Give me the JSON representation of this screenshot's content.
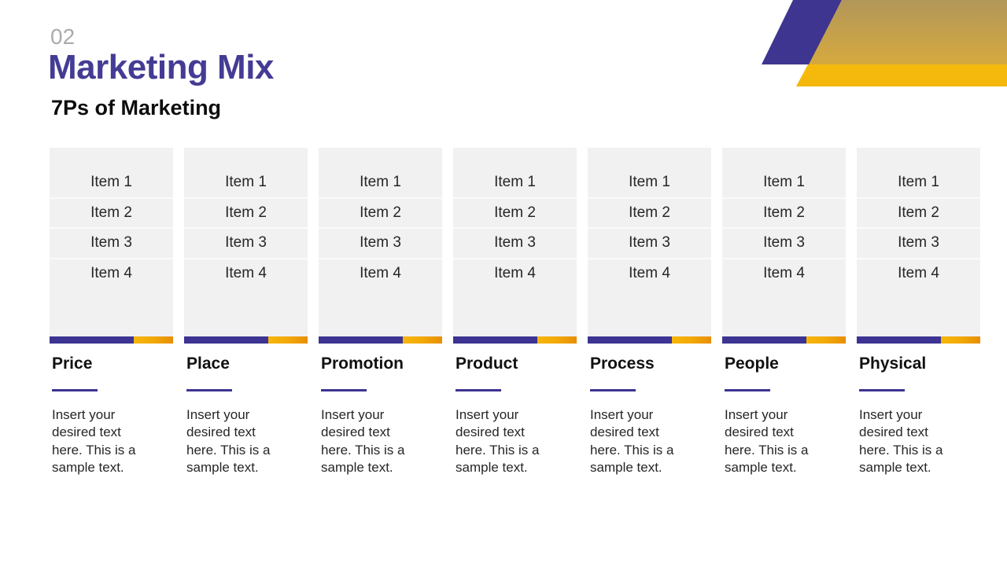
{
  "slide": {
    "section_number": "02",
    "title": "Marketing Mix",
    "subtitle": "7Ps of Marketing"
  },
  "colors": {
    "accent_purple": "#3c3392",
    "title_purple": "#443c94",
    "accent_gold": "#f4b60b",
    "accent_orange": "#e78e06",
    "card_gray": "#f1f1f1",
    "muted_number_gray": "#ababab"
  },
  "body_text": "Insert your\ndesired text\nhere. This is a\nsample text.",
  "columns": [
    {
      "heading": "Price",
      "items": [
        "Item 1",
        "Item 2",
        "Item 3",
        "Item 4"
      ],
      "body": "Insert your\ndesired text\nhere. This is a\nsample text."
    },
    {
      "heading": "Place",
      "items": [
        "Item 1",
        "Item 2",
        "Item 3",
        "Item 4"
      ],
      "body": "Insert your\ndesired text\nhere. This is a\nsample text."
    },
    {
      "heading": "Promotion",
      "items": [
        "Item 1",
        "Item 2",
        "Item 3",
        "Item 4"
      ],
      "body": "Insert your\ndesired text\nhere. This is a\nsample text."
    },
    {
      "heading": "Product",
      "items": [
        "Item 1",
        "Item 2",
        "Item 3",
        "Item 4"
      ],
      "body": "Insert your\ndesired text\nhere. This is a\nsample text."
    },
    {
      "heading": "Process",
      "items": [
        "Item 1",
        "Item 2",
        "Item 3",
        "Item 4"
      ],
      "body": "Insert your\ndesired text\nhere. This is a\nsample text."
    },
    {
      "heading": "People",
      "items": [
        "Item 1",
        "Item 2",
        "Item 3",
        "Item 4"
      ],
      "body": "Insert your\ndesired text\nhere. This is a\nsample text."
    },
    {
      "heading": "Physical",
      "items": [
        "Item 1",
        "Item 2",
        "Item 3",
        "Item 4"
      ],
      "body": "Insert your\ndesired text\nhere. This is a\nsample text."
    }
  ]
}
